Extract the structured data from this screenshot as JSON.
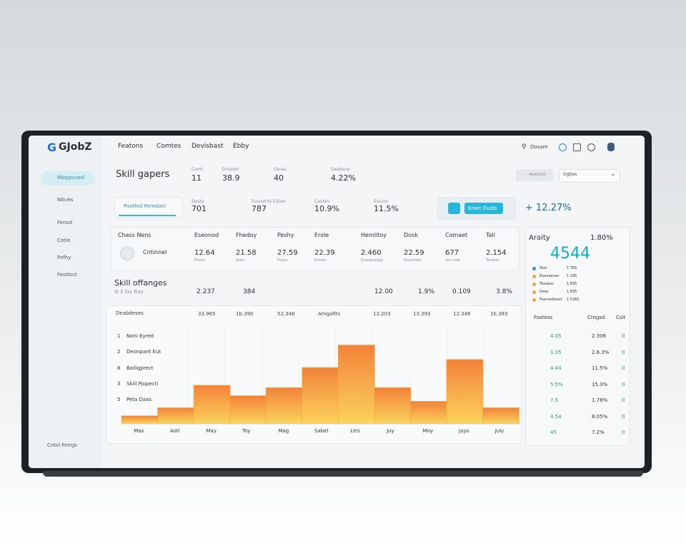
{
  "brand": "GJobZ",
  "nav": [
    "Featons",
    "Comtes",
    "Devisbast",
    "Ebby"
  ],
  "search": "Dosam",
  "sidebar": [
    "Mioppcoed",
    "Nitues",
    "Fenod",
    "Cotie",
    "Pofhy",
    "Feotloct"
  ],
  "sidebar_footer": "Cotol Fetrgs",
  "header": {
    "title": "Skill gapers",
    "stats": [
      {
        "label": "Comt",
        "value": "11"
      },
      {
        "label": "Dreplon",
        "value": "38.9"
      },
      {
        "label": "Eanas",
        "value": "40"
      },
      {
        "label": "Deebsne",
        "value": "4.22%"
      }
    ],
    "button": "Avesses",
    "select": "Ogties"
  },
  "tabs_row": {
    "tab": "Pootfod Pemdonl",
    "stats": [
      {
        "label": "Dosty",
        "value": "701"
      },
      {
        "label": "Evsnetrly Esliee",
        "value": "787"
      },
      {
        "label": "Caoten",
        "value": "10.9%"
      },
      {
        "label": "Esnioo",
        "value": "11.5%"
      }
    ],
    "button": "Eroet Dusts",
    "kpi": "+ 12.27%"
  },
  "table": {
    "headers": [
      "Chass Nens",
      "Eseonod",
      "Fhedoy",
      "Peshy",
      "Erole",
      "Hemlitoy",
      "Dosk",
      "Comaet",
      "Tall"
    ],
    "row_name": "Cntinnel",
    "cells": [
      {
        "value": "12.64",
        "sub": "Pnoas"
      },
      {
        "value": "21.58",
        "sub": "Sobs"
      },
      {
        "value": "27.59",
        "sub": "Foyes"
      },
      {
        "value": "22.39",
        "sub": "Evtoes"
      },
      {
        "value": "2.460",
        "sub": "Exsopeanpp"
      },
      {
        "value": "22.59",
        "sub": "Puxsehidt"
      },
      {
        "value": "677",
        "sub": "Ssrt ooe"
      },
      {
        "value": "2.154",
        "sub": "Tosasta"
      }
    ]
  },
  "section": {
    "title": "Skill offanges",
    "subtitle": "Q 3 fay Bay",
    "values": [
      "2.237",
      "384",
      "12.00",
      "1.9%",
      "0.109",
      "3.8%"
    ]
  },
  "filter": {
    "label": "Deabdeses",
    "values": [
      "33.965",
      "1b.390",
      "52.348",
      "Amgafits",
      "13.203",
      "13.393",
      "12.348",
      "1b.383"
    ]
  },
  "chart_rows": [
    "Noni Eyred",
    "Deonpant Eut",
    "Balligprect",
    "Skill Pjopecti",
    "Peta Daxs"
  ],
  "chart_row_numbers": [
    "1",
    "2",
    "8",
    "3",
    "5"
  ],
  "chart_data": {
    "type": "bar",
    "categories": [
      "Mas",
      "Aotl",
      "May",
      "Toy",
      "Mag",
      "Sabel",
      "Ltrs",
      "Juy",
      "Moy",
      "Juys",
      "July"
    ],
    "values": [
      10,
      20,
      48,
      35,
      45,
      70,
      98,
      45,
      28,
      80,
      20
    ],
    "ylim": [
      0,
      110
    ],
    "color": "#f7a53c"
  },
  "right": {
    "title": "Araity",
    "kpi_small": "1.80%",
    "kpi_big": "4544",
    "legend": [
      {
        "label": "Toot",
        "value": "1 TR5"
      },
      {
        "label": "Ruacaenes",
        "value": "1 185"
      },
      {
        "label": "Tosoeus",
        "value": "1 835"
      },
      {
        "label": "Dees",
        "value": "1 835"
      },
      {
        "label": "Fesnvelieoot",
        "value": "1 5365"
      }
    ],
    "headers": [
      "Fostess",
      "Crogsd",
      "Csit"
    ],
    "rows": [
      [
        "4.05",
        "2.306",
        "0"
      ],
      [
        "1.35",
        "2.6.3%",
        "0"
      ],
      [
        "4.44",
        "11.5%",
        "0"
      ],
      [
        "5.5%",
        "15.3%",
        "0"
      ],
      [
        "7.5",
        "1.78%",
        "0"
      ],
      [
        "4.54",
        "8.05%",
        "0"
      ],
      [
        "45",
        "7.2%",
        "0"
      ]
    ]
  }
}
